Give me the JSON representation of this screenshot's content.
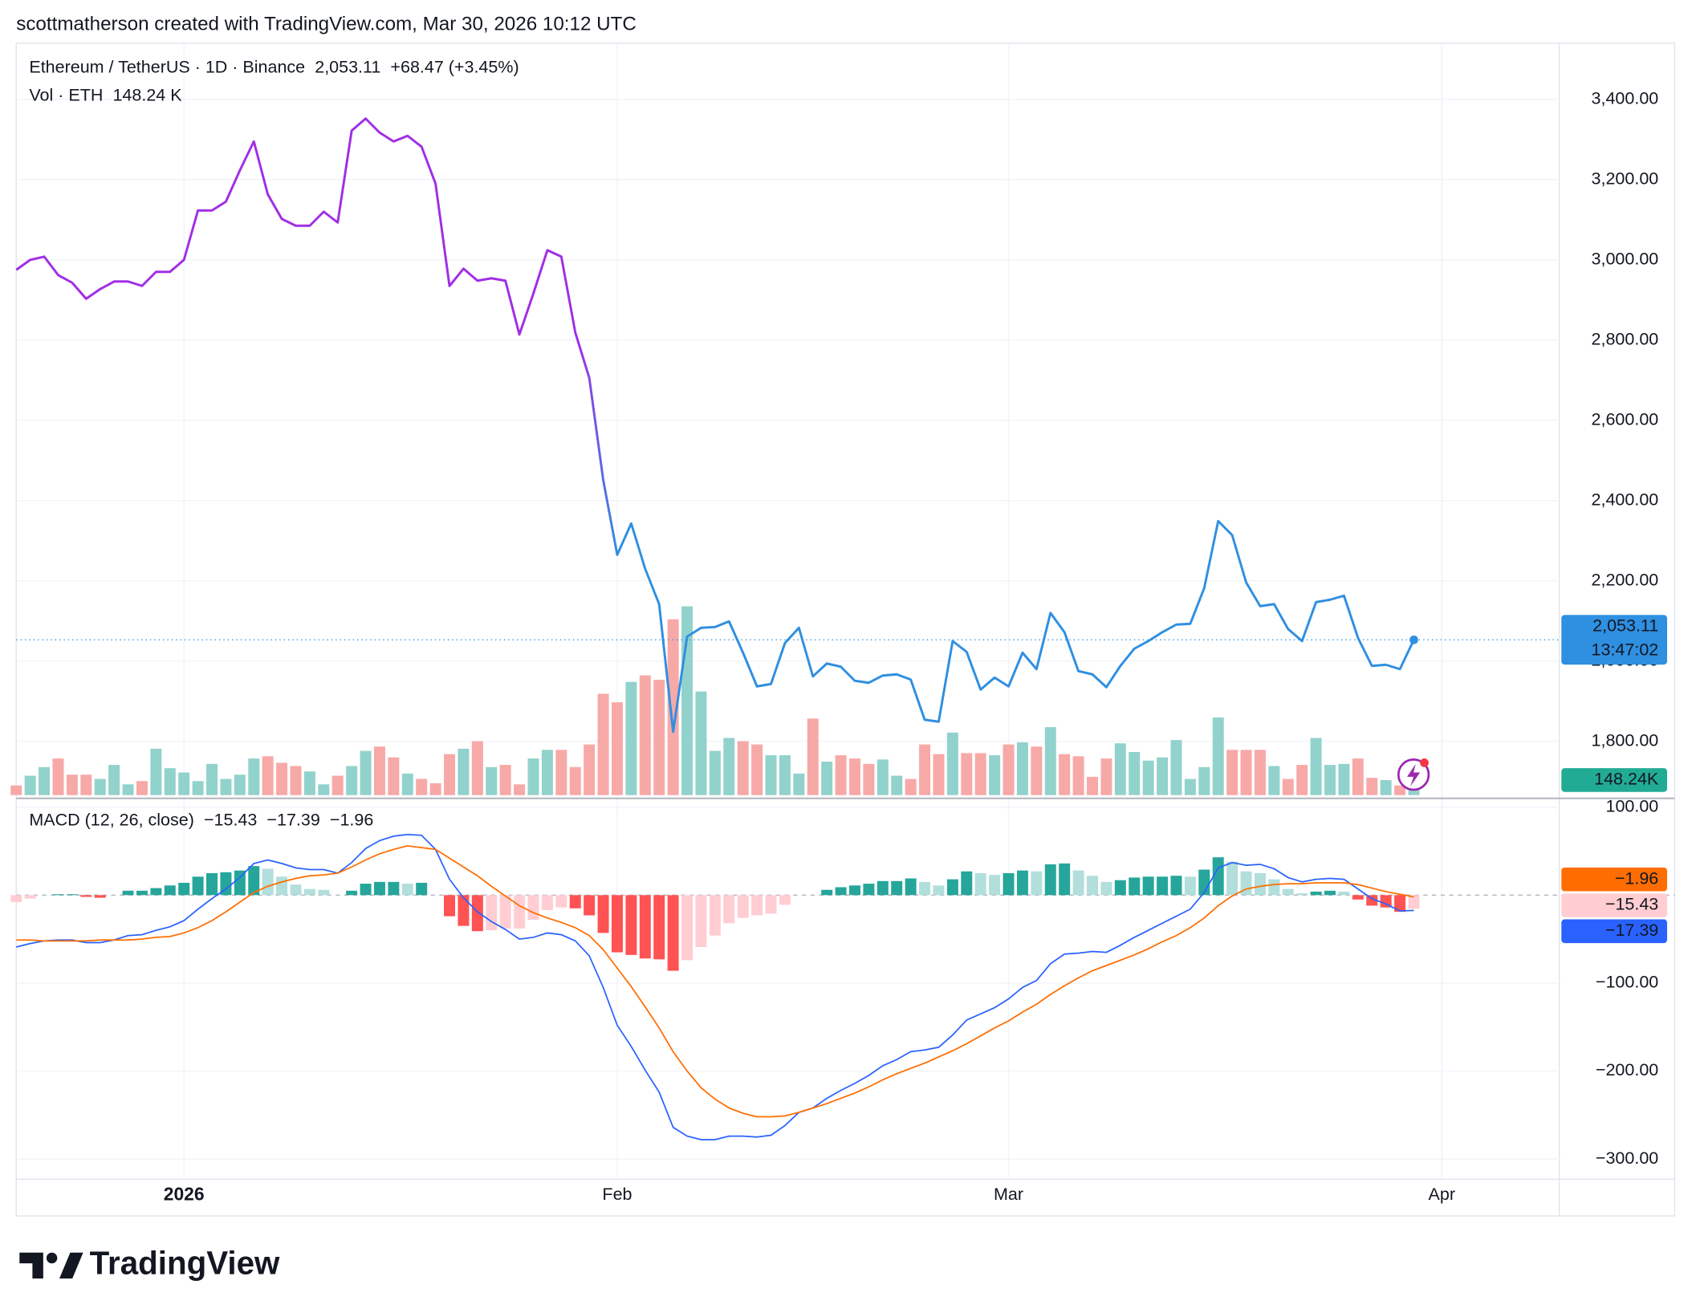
{
  "header": {
    "caption": "scottmatherson created with TradingView.com, Mar 30, 2026 10:12 UTC"
  },
  "footer": {
    "logo": "TradingView"
  },
  "chart_data": [
    {
      "type": "line",
      "title": "Ethereum / TetherUS · 1D · Binance",
      "last_label": "2,053.11",
      "change": "+68.47 (+3.45%)",
      "countdown": "13:47:02",
      "colors": [
        "#a12ee6",
        "#2f8fe1"
      ],
      "values": [
        2975,
        3000,
        3008,
        2962,
        2943,
        2903,
        2927,
        2946,
        2946,
        2935,
        2970,
        2970,
        3000,
        3123,
        3123,
        3145,
        3223,
        3295,
        3163,
        3102,
        3085,
        3085,
        3120,
        3093,
        3322,
        3352,
        3317,
        3295,
        3309,
        3282,
        3190,
        2935,
        2978,
        2948,
        2954,
        2948,
        2814,
        2916,
        3024,
        3008,
        2819,
        2706,
        2451,
        2265,
        2343,
        2230,
        2142,
        1824,
        2061,
        2083,
        2085,
        2099,
        2021,
        1937,
        1943,
        2045,
        2083,
        1962,
        1994,
        1986,
        1951,
        1946,
        1964,
        1967,
        1954,
        1854,
        1849,
        2050,
        2023,
        1929,
        1959,
        1937,
        2021,
        1980,
        2120,
        2072,
        1975,
        1967,
        1935,
        1988,
        2031,
        2050,
        2072,
        2091,
        2093,
        2182,
        2349,
        2314,
        2196,
        2137,
        2142,
        2080,
        2050,
        2147,
        2153,
        2163,
        2058,
        1988,
        1991,
        1980,
        2053.11
      ],
      "xlim": [
        0,
        110.4
      ],
      "ylim": [
        1666,
        3540
      ],
      "yticks": [
        {
          "value": 1800,
          "label": "1,800.00"
        },
        {
          "value": 2000,
          "label": "2,000.00"
        },
        {
          "value": 2200,
          "label": "2,200.00"
        },
        {
          "value": 2400,
          "label": "2,400.00"
        },
        {
          "value": 2600,
          "label": "2,600.00"
        },
        {
          "value": 2800,
          "label": "2,800.00"
        },
        {
          "value": 3000,
          "label": "3,000.00"
        },
        {
          "value": 3200,
          "label": "3,200.00"
        },
        {
          "value": 3400,
          "label": "3,400.00"
        }
      ],
      "grid": true
    },
    {
      "type": "bar",
      "title": "Vol · ETH",
      "header_value": "148.24 K",
      "last_label": "148.24K",
      "up_color": "#92d2cc",
      "down_color": "#f7a9a7",
      "label_color": "#22ab94",
      "values": [
        95,
        191,
        276,
        360,
        201,
        201,
        159,
        297,
        106,
        138,
        456,
        265,
        223,
        138,
        307,
        159,
        201,
        360,
        382,
        318,
        286,
        233,
        106,
        191,
        286,
        435,
        477,
        371,
        212,
        159,
        117,
        403,
        456,
        530,
        276,
        297,
        106,
        360,
        445,
        445,
        276,
        498,
        996,
        912,
        1113,
        1177,
        1134,
        1728,
        1855,
        1018,
        435,
        562,
        530,
        498,
        392,
        392,
        212,
        753,
        329,
        392,
        360,
        307,
        350,
        191,
        159,
        498,
        403,
        615,
        413,
        413,
        392,
        498,
        519,
        477,
        668,
        403,
        382,
        180,
        360,
        509,
        424,
        339,
        371,
        541,
        159,
        276,
        763,
        445,
        445,
        445,
        286,
        159,
        297,
        562,
        297,
        307,
        360,
        170,
        148,
        95,
        148.24
      ],
      "xlim": [
        0,
        110.4
      ],
      "ylim": [
        0,
        7390
      ]
    },
    {
      "type": "macd",
      "title": "MACD (12, 26, close)",
      "xlim": [
        0,
        110.4
      ],
      "ylim": [
        -323,
        110
      ],
      "xticks": [
        {
          "value": 12,
          "label": "2026"
        },
        {
          "value": 43,
          "label": "Feb"
        },
        {
          "value": 71,
          "label": "Mar"
        },
        {
          "value": 102,
          "label": "Apr"
        }
      ],
      "yticks": [
        {
          "value": 100,
          "label": "100.00"
        },
        {
          "value": -100,
          "label": "−100.00"
        },
        {
          "value": -200,
          "label": "−200.00"
        },
        {
          "value": -300,
          "label": "−300.00"
        }
      ],
      "grid": true,
      "histogram": {
        "last_label": "−15.43",
        "colors": {
          "rise_above": "#26a69a",
          "fall_above": "#b2dfdb",
          "rise_below": "#ffcdd2",
          "fall_below": "#ff5252"
        },
        "values": [
          -8,
          -4,
          0,
          1,
          1,
          -2,
          -3,
          0,
          5,
          5,
          8,
          11,
          14,
          21,
          25,
          26,
          28,
          33,
          30,
          21,
          12,
          7,
          6,
          0,
          5,
          13,
          15,
          15,
          13,
          14,
          0,
          -24,
          -35,
          -41,
          -40,
          -38,
          -38,
          -28,
          -17,
          -14,
          -15,
          -23,
          -43,
          -65,
          -68,
          -72,
          -73,
          -86,
          -74,
          -59,
          -46,
          -32,
          -26,
          -23,
          -21,
          -11,
          0,
          0,
          6,
          9,
          11,
          13,
          16,
          16,
          19,
          15,
          11,
          18,
          27,
          25,
          23,
          25,
          28,
          27,
          35,
          36,
          28,
          22,
          15,
          17,
          20,
          21,
          21,
          22,
          21,
          29,
          43,
          38,
          27,
          25,
          18,
          7,
          2,
          4,
          5,
          4,
          -5,
          -12,
          -14,
          -19,
          -15.43
        ]
      },
      "macd": {
        "last_label": "−17.39",
        "color": "#2962ff",
        "values": [
          -59,
          -55,
          -52,
          -51,
          -51,
          -54,
          -54,
          -51,
          -46,
          -45,
          -40,
          -36,
          -29,
          -16,
          -4,
          7,
          20,
          36,
          40,
          36,
          31,
          29,
          29,
          25,
          37,
          53,
          62,
          67,
          69,
          68,
          52,
          18,
          -3,
          -19,
          -30,
          -39,
          -50,
          -48,
          -43,
          -45,
          -52,
          -69,
          -105,
          -148,
          -172,
          -199,
          -224,
          -264,
          -274,
          -278,
          -278,
          -274,
          -274,
          -275,
          -273,
          -262,
          -247,
          -242,
          -231,
          -222,
          -214,
          -205,
          -194,
          -187,
          -178,
          -176,
          -173,
          -159,
          -142,
          -135,
          -128,
          -118,
          -105,
          -97,
          -78,
          -67,
          -66,
          -64,
          -65,
          -57,
          -48,
          -40,
          -32,
          -24,
          -16,
          3,
          31,
          37,
          34,
          35,
          30,
          20,
          15,
          18,
          19,
          18,
          7,
          -4,
          -10,
          -18,
          -17.39
        ]
      },
      "signal": {
        "last_label": "−1.96",
        "color": "#ff6d00",
        "values": [
          -51,
          -51,
          -52,
          -52,
          -52,
          -52,
          -51,
          -51,
          -51,
          -50,
          -48,
          -47,
          -43,
          -37,
          -29,
          -19,
          -8,
          3,
          10,
          15,
          19,
          22,
          23,
          25,
          32,
          40,
          47,
          52,
          56,
          54,
          52,
          42,
          32,
          22,
          10,
          -1,
          -12,
          -20,
          -26,
          -31,
          -37,
          -46,
          -62,
          -83,
          -104,
          -127,
          -151,
          -178,
          -200,
          -219,
          -232,
          -242,
          -248,
          -252,
          -252,
          -251,
          -247,
          -242,
          -237,
          -231,
          -225,
          -218,
          -210,
          -203,
          -197,
          -191,
          -184,
          -177,
          -169,
          -160,
          -151,
          -143,
          -133,
          -124,
          -113,
          -103,
          -94,
          -86,
          -80,
          -74,
          -68,
          -61,
          -53,
          -46,
          -37,
          -26,
          -12,
          -1,
          7,
          10,
          12,
          13,
          13,
          14,
          14,
          14,
          12,
          8,
          4,
          1,
          -1.96
        ]
      }
    }
  ]
}
